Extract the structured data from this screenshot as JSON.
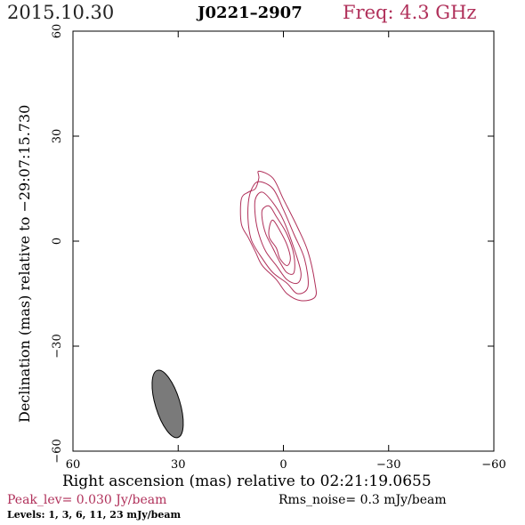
{
  "header": {
    "date": "2015.10.30",
    "source": "J0221–2907",
    "freq": "Freq: 4.3 GHz"
  },
  "footer": {
    "peak": "Peak_lev=  0.030 Jy/beam",
    "rms": "Rms_noise=  0.3 mJy/beam",
    "levels": "Levels:   1,   3,   6,  11,  23 mJy/beam"
  },
  "colors": {
    "accent": "#b0305a",
    "beam_fill": "#7a7a7a"
  },
  "chart_data": {
    "type": "contour",
    "title": "J0221–2907",
    "xlabel": "Right ascension (mas) relative to 02:21:19.0655",
    "ylabel": "Declination (mas) relative to −29:07:15.730",
    "xlim": [
      60,
      -60
    ],
    "ylim": [
      -60,
      60
    ],
    "xticks": [
      60,
      30,
      0,
      -30,
      -60
    ],
    "yticks": [
      60,
      30,
      0,
      -30,
      -60
    ],
    "xtick_labels": [
      "60",
      "30",
      "0",
      "−30",
      "−60"
    ],
    "ytick_labels": [
      "60",
      "30",
      "0",
      "−30",
      "−60"
    ],
    "contour_levels_mJy": [
      1,
      3,
      6,
      11,
      23
    ],
    "contours": [
      {
        "level": 1,
        "points": [
          [
            7,
            20
          ],
          [
            3,
            18
          ],
          [
            0,
            12
          ],
          [
            -4,
            4
          ],
          [
            -7,
            -3
          ],
          [
            -9,
            -12
          ],
          [
            -9,
            -16
          ],
          [
            -5,
            -17
          ],
          [
            -1,
            -15
          ],
          [
            2,
            -11
          ],
          [
            6,
            -7
          ],
          [
            8,
            -3
          ],
          [
            10,
            1
          ],
          [
            12,
            5
          ],
          [
            12,
            12
          ],
          [
            10,
            14
          ],
          [
            8,
            15
          ],
          [
            7,
            18
          ]
        ]
      },
      {
        "level": 3,
        "points": [
          [
            7,
            17
          ],
          [
            3,
            15
          ],
          [
            0,
            9
          ],
          [
            -3,
            2
          ],
          [
            -6,
            -5
          ],
          [
            -7,
            -13
          ],
          [
            -4,
            -15
          ],
          [
            -1,
            -12
          ],
          [
            3,
            -9
          ],
          [
            6,
            -5
          ],
          [
            9,
            0
          ],
          [
            10,
            5
          ],
          [
            10,
            11
          ],
          [
            9,
            15
          ]
        ]
      },
      {
        "level": 6,
        "points": [
          [
            6,
            14
          ],
          [
            3,
            11
          ],
          [
            0,
            6
          ],
          [
            -3,
            -2
          ],
          [
            -5,
            -9
          ],
          [
            -4,
            -12
          ],
          [
            -1,
            -11
          ],
          [
            2,
            -7
          ],
          [
            5,
            -3
          ],
          [
            7,
            2
          ],
          [
            8,
            7
          ],
          [
            8,
            12
          ]
        ]
      },
      {
        "level": 11,
        "points": [
          [
            4,
            10
          ],
          [
            2,
            7
          ],
          [
            -1,
            2
          ],
          [
            -3,
            -4
          ],
          [
            -3,
            -9
          ],
          [
            -1,
            -9
          ],
          [
            1,
            -6
          ],
          [
            3,
            -2
          ],
          [
            5,
            2
          ],
          [
            6,
            6
          ],
          [
            6,
            9
          ]
        ]
      },
      {
        "level": 23,
        "points": [
          [
            3,
            6
          ],
          [
            1,
            3
          ],
          [
            -1,
            -1
          ],
          [
            -2,
            -5
          ],
          [
            -1,
            -7
          ],
          [
            1,
            -5
          ],
          [
            2,
            -2
          ],
          [
            4,
            1
          ],
          [
            4,
            4
          ]
        ]
      }
    ],
    "beam": {
      "center": [
        33,
        -46.5
      ],
      "major_mas": 20,
      "minor_mas": 7,
      "pa_deg": -17
    },
    "grid": false
  }
}
